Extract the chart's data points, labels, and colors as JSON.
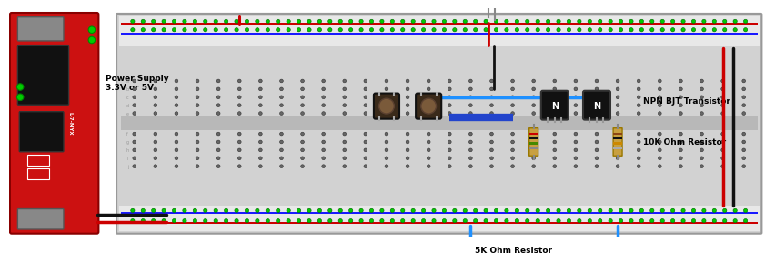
{
  "labels": {
    "power_supply": "Power Supply\n3.3V or 5V",
    "npn_bjt": "NPN BJT Transistor",
    "10k_resistor": "10K Ohm Resistor",
    "5k_resistor": "5K Ohm Resistor"
  },
  "label_fontsize": 6.5,
  "rail_red": "#cc0000",
  "rail_blue": "#1a1aff",
  "wire_blue": "#1e90ff",
  "wire_black": "#111111",
  "wire_red": "#cc0000",
  "hole_green": "#00cc00",
  "hole_dark": "#666666",
  "bb_bg": "#d2d2d2",
  "bb_border": "#999999",
  "pcb_red": "#cc1111",
  "transistor_body": "#111111",
  "led_color": "#ff2222",
  "btn_body": "#3a2a1a",
  "btn_top": "#7a5a3a",
  "resistor_body": "#c8a040",
  "mid_strip": "#b8b8b8"
}
